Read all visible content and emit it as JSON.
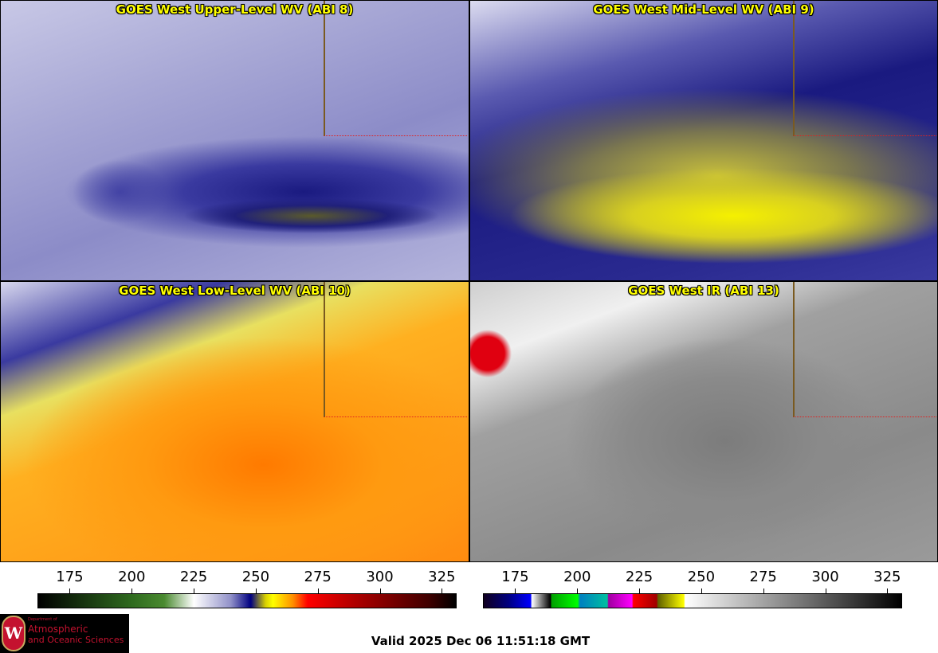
{
  "panels": [
    {
      "title": "GOES West Upper-Level WV (ABI 8)"
    },
    {
      "title": "GOES West Mid-Level WV (ABI 9)"
    },
    {
      "title": "GOES West Low-Level WV (ABI 10)"
    },
    {
      "title": "GOES West IR (ABI 13)"
    }
  ],
  "colorbars": [
    {
      "name": "wv",
      "range": [
        162,
        331
      ],
      "ticks": [
        175,
        200,
        225,
        250,
        275,
        300,
        325
      ],
      "stops": [
        [
          162,
          "#000000"
        ],
        [
          200,
          "#2f6b1f"
        ],
        [
          213,
          "#4a8a30"
        ],
        [
          225,
          "#ffffff"
        ],
        [
          240,
          "#9090c8"
        ],
        [
          248,
          "#000080"
        ],
        [
          254,
          "#d8d000"
        ],
        [
          257,
          "#ffff00"
        ],
        [
          265,
          "#ff9000"
        ],
        [
          271,
          "#ff0000"
        ],
        [
          290,
          "#b00000"
        ],
        [
          320,
          "#400000"
        ],
        [
          331,
          "#000000"
        ]
      ]
    },
    {
      "name": "ir",
      "range": [
        162,
        331
      ],
      "ticks": [
        175,
        200,
        225,
        250,
        275,
        300,
        325
      ],
      "stops": [
        [
          162,
          "#100020"
        ],
        [
          172,
          "#000080"
        ],
        [
          181,
          "#0000ff"
        ],
        [
          181.5,
          "#ffffff"
        ],
        [
          189,
          "#000000"
        ],
        [
          189.5,
          "#00a000"
        ],
        [
          200,
          "#00ff00"
        ],
        [
          201,
          "#0080c0"
        ],
        [
          212,
          "#00c0a0"
        ],
        [
          212.5,
          "#a000a0"
        ],
        [
          222,
          "#ff00ff"
        ],
        [
          222.5,
          "#ff0000"
        ],
        [
          232,
          "#a00000"
        ],
        [
          232.5,
          "#606000"
        ],
        [
          243,
          "#ffff00"
        ],
        [
          243.5,
          "#ffffff"
        ],
        [
          331,
          "#000000"
        ]
      ]
    }
  ],
  "logo": {
    "line1": "Department of",
    "line2": "Atmospheric",
    "line3": "and Oceanic Sciences",
    "seal": "W"
  },
  "valid": "Valid 2025 Dec 06 11:51:18 GMT"
}
